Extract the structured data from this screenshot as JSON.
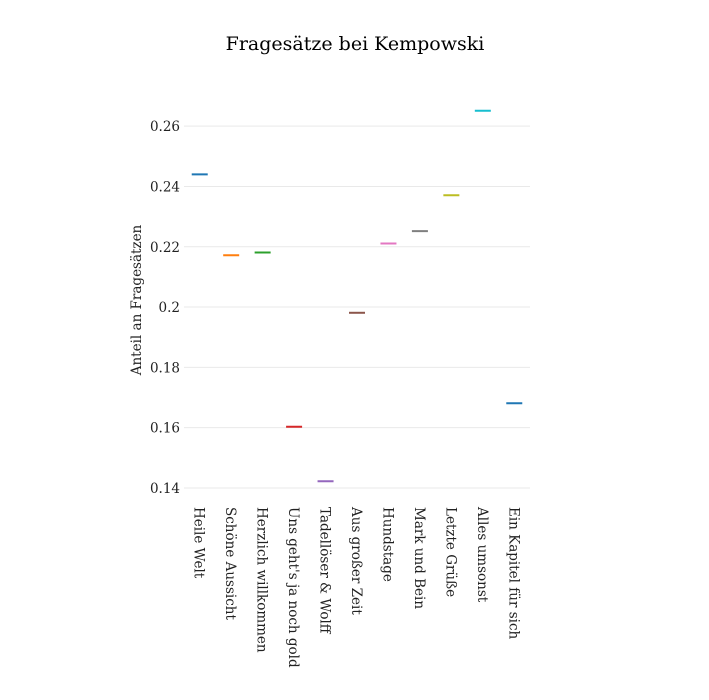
{
  "chart_data": {
    "type": "scatter",
    "title": "Fragesätze bei Kempowski",
    "xlabel": "",
    "ylabel": "Anteil an Fragesätzen",
    "ylim": [
      0.136,
      0.272
    ],
    "yticks": [
      "0.14",
      "0.16",
      "0.18",
      "0.2",
      "0.22",
      "0.24",
      "0.26"
    ],
    "grid": true,
    "categories": [
      "Heile Welt",
      "Schöne Aussicht",
      "Herzlich willkommen",
      "Uns geht's ja noch gold",
      "Tadellöser & Wolff",
      "Aus großer Zeit",
      "Hundstage",
      "Mark und Bein",
      "Letzte Grüße",
      "Alles umsonst",
      "Ein Kapitel für sich"
    ],
    "values": [
      0.244,
      0.2172,
      0.2181,
      0.1603,
      0.1422,
      0.1981,
      0.2211,
      0.2252,
      0.2371,
      0.2651,
      0.1681
    ],
    "colors": [
      "#1f77b4",
      "#ff7f0e",
      "#2ca02c",
      "#d62728",
      "#9467bd",
      "#8c564b",
      "#e377c2",
      "#7f7f7f",
      "#bcbd22",
      "#17becf",
      "#1f77b4"
    ]
  }
}
